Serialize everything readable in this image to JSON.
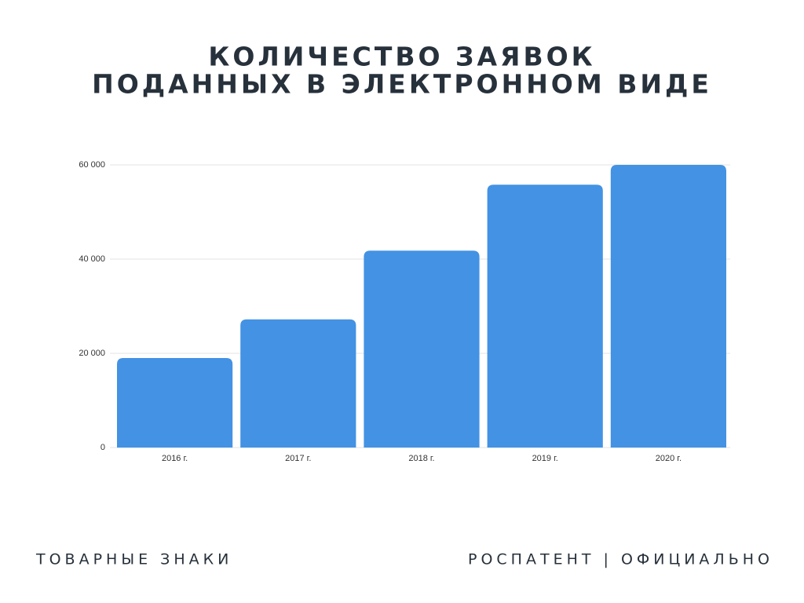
{
  "chart_data": {
    "type": "bar",
    "title": [
      "КОЛИЧЕСТВО ЗАЯВОК",
      "ПОДАННЫХ В ЭЛЕКТРОННОМ ВИДЕ"
    ],
    "categories": [
      "2016 г.",
      "2017 г.",
      "2018 г.",
      "2019 г.",
      "2020 г."
    ],
    "values": [
      19000,
      27200,
      41800,
      55800,
      60000
    ],
    "color": "#4392e4",
    "ylim": [
      0,
      60000
    ],
    "yticks": [
      0,
      {
        "value": 20000,
        "label": "20 000"
      },
      {
        "value": 40000,
        "label": "40 000"
      },
      {
        "value": 60000,
        "label": "60 000"
      }
    ],
    "grid": true
  },
  "footer": {
    "left": "ТОВАРНЫЕ ЗНАКИ",
    "right": "РОСПАТЕНТ | ОФИЦИАЛЬНО"
  }
}
